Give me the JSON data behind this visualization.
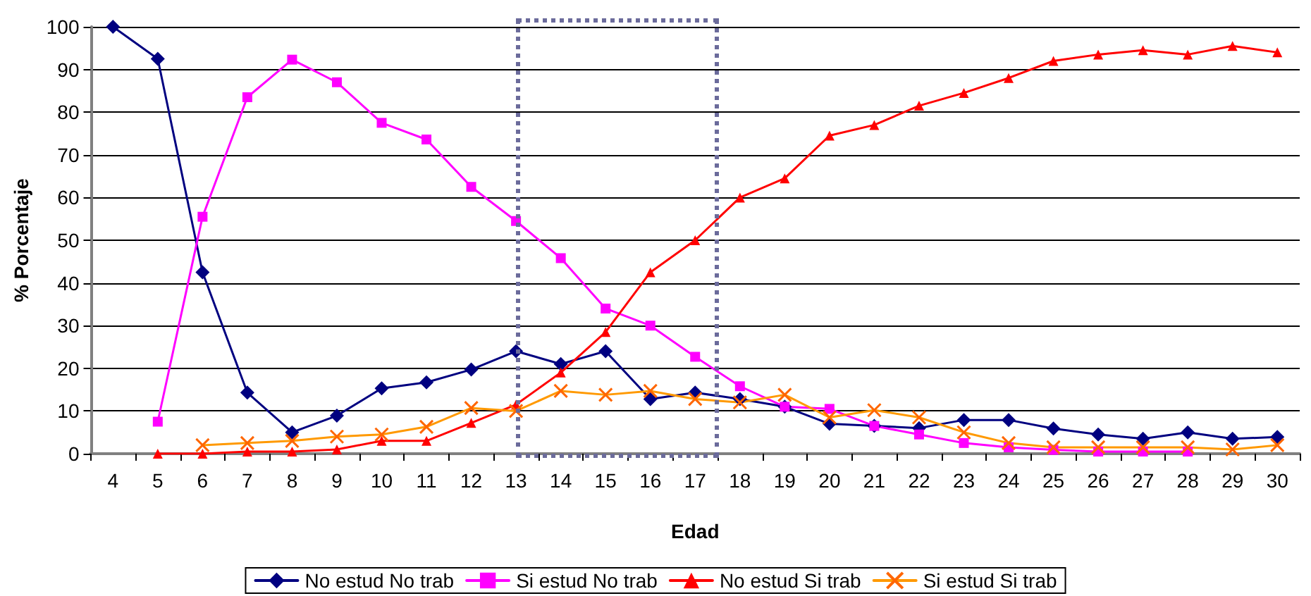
{
  "chart_data": {
    "type": "line",
    "xlabel": "Edad",
    "ylabel": "% Porcentaje",
    "categories": [
      "4",
      "5",
      "6",
      "7",
      "8",
      "9",
      "10",
      "11",
      "12",
      "13",
      "14",
      "15",
      "16",
      "17",
      "18",
      "19",
      "20",
      "21",
      "22",
      "23",
      "24",
      "25",
      "26",
      "27",
      "28",
      "29",
      "30"
    ],
    "ylim": [
      0,
      100
    ],
    "yticks": [
      0,
      10,
      20,
      30,
      40,
      50,
      60,
      70,
      80,
      90,
      100
    ],
    "grid": "y",
    "legend": "bottom",
    "series": [
      {
        "name": "No estud No trab",
        "color": "#000080",
        "marker": "diamond",
        "values": [
          100,
          92.5,
          42.5,
          14.3,
          5,
          8.9,
          15.3,
          16.7,
          19.7,
          24,
          21,
          24,
          12.8,
          14.3,
          12.8,
          11,
          7,
          6.5,
          6,
          7.9,
          7.9,
          5.9,
          4.5,
          3.5,
          5,
          3.5,
          3.9
        ]
      },
      {
        "name": "Si estud No trab",
        "color": "#ff00ff",
        "marker": "square",
        "values": [
          null,
          7.5,
          55.5,
          83.5,
          92.3,
          87,
          77.5,
          73.6,
          62.5,
          54.5,
          45.8,
          34,
          30,
          22.7,
          15.8,
          11,
          10.5,
          6.5,
          4.5,
          2.5,
          1.5,
          0.9,
          0.5,
          0.5,
          0.5,
          null,
          null
        ]
      },
      {
        "name": "No estud Si trab",
        "color": "#ff0000",
        "marker": "triangle",
        "values": [
          null,
          0,
          0,
          0.5,
          0.5,
          1,
          3,
          3,
          7.2,
          11.5,
          19,
          28.5,
          42.5,
          50,
          60,
          64.5,
          74.5,
          77,
          81.5,
          84.5,
          88,
          92,
          93.5,
          94.5,
          93.5,
          95.5,
          94
        ]
      },
      {
        "name": "Si estud Si trab",
        "color": "#ff9900",
        "marker": "cross",
        "values": [
          null,
          null,
          2,
          2.5,
          3,
          4,
          4.5,
          6.3,
          10.7,
          10,
          14.7,
          13.8,
          14.7,
          12.8,
          12,
          13.8,
          8.5,
          10.2,
          8.5,
          5,
          2.5,
          1.5,
          1.5,
          1.5,
          1.5,
          1,
          2
        ]
      }
    ]
  }
}
